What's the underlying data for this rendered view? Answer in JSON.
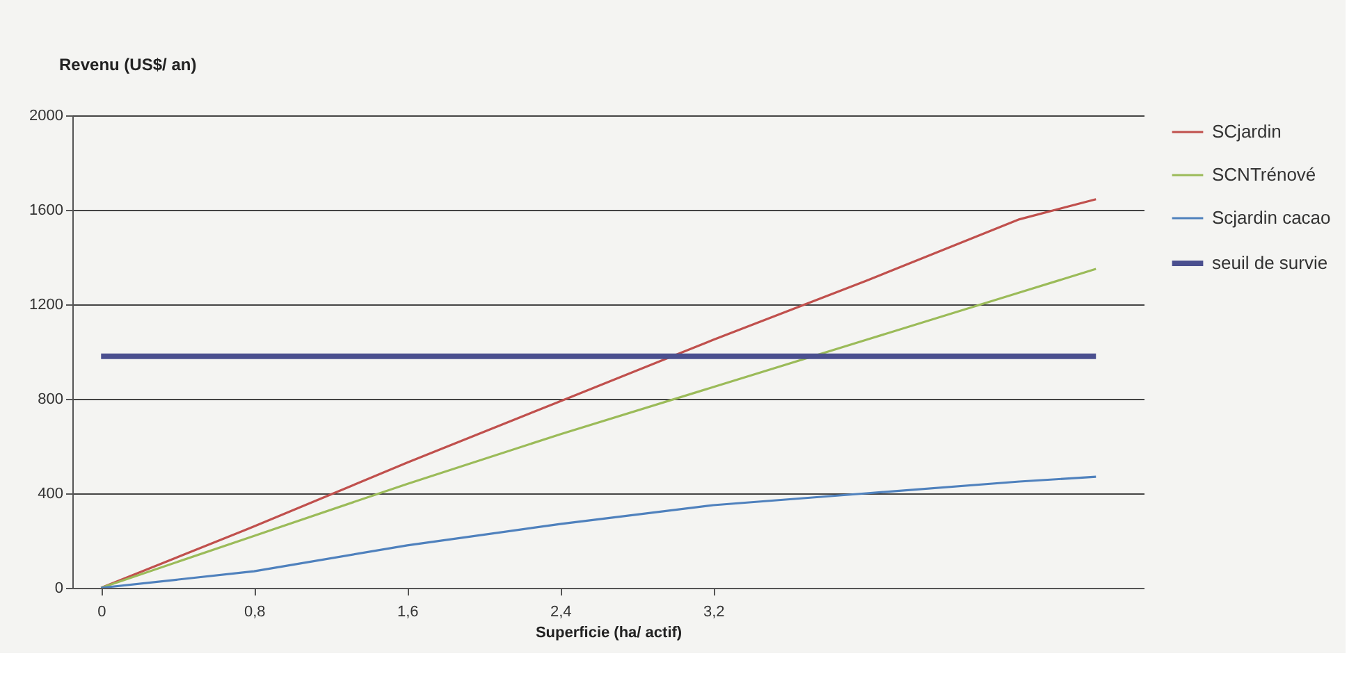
{
  "chart_data": {
    "type": "line",
    "xlabel": "Superficie (ha/ actif)",
    "ylabel": "Revenu (US$/ an)",
    "x": [
      0,
      0.8,
      1.6,
      2.4,
      3.2,
      4.0,
      4.8,
      5.2
    ],
    "series": [
      {
        "name": "SCjardin",
        "color": "#c0504d",
        "values": [
          0,
          260,
          530,
          790,
          1050,
          1300,
          1560,
          1645
        ]
      },
      {
        "name": "SCNTrénové",
        "color": "#9bbb59",
        "values": [
          0,
          220,
          440,
          650,
          850,
          1050,
          1250,
          1350
        ]
      },
      {
        "name": "Scjardin cacao",
        "color": "#4f81bd",
        "values": [
          0,
          70,
          180,
          270,
          350,
          400,
          450,
          470
        ]
      },
      {
        "name": "seuil de survie",
        "color": "#4a4f8f",
        "values": [
          980,
          980,
          980,
          980,
          980,
          980,
          980,
          980
        ]
      }
    ],
    "xlim": [
      -0.15,
      5.45
    ],
    "xticks": [
      {
        "value": 0,
        "label": "0"
      },
      {
        "value": 0.8,
        "label": "0,8"
      },
      {
        "value": 1.6,
        "label": "1,6"
      },
      {
        "value": 2.4,
        "label": "2,4"
      },
      {
        "value": 3.2,
        "label": "3,2"
      }
    ],
    "ylim": [
      0,
      2000
    ],
    "yticks": [
      0,
      400,
      800,
      1200,
      1600,
      2000
    ],
    "grid": "y",
    "legend": "right",
    "marker": "none",
    "line_style": "solid"
  }
}
